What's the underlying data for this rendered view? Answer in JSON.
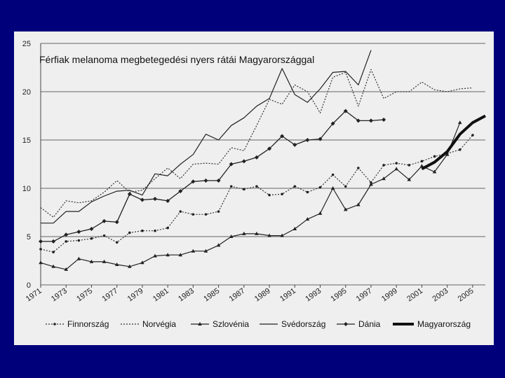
{
  "slide_background": "#00007a",
  "chart_data": {
    "type": "line",
    "title": "Férfiak melanoma megbetegedési nyers rátái Magyarországgal",
    "xlabel": "",
    "ylabel": "",
    "ylim": [
      0,
      25
    ],
    "yticks": [
      0,
      5,
      10,
      15,
      20,
      25
    ],
    "xticks": [
      "1971",
      "1973",
      "1975",
      "1977",
      "1979",
      "1981",
      "1983",
      "1985",
      "1987",
      "1989",
      "1991",
      "1993",
      "1995",
      "1997",
      "1999",
      "2001",
      "2003",
      "2005"
    ],
    "grid": "horizontal",
    "legend_position": "bottom",
    "series": [
      {
        "name": "Finnország",
        "style": "dotted-dots",
        "x": [
          1971,
          1972,
          1973,
          1974,
          1975,
          1976,
          1977,
          1978,
          1979,
          1980,
          1981,
          1982,
          1983,
          1984,
          1985,
          1986,
          1987,
          1988,
          1989,
          1990,
          1991,
          1992,
          1993,
          1994,
          1995,
          1996,
          1997,
          1998,
          1999,
          2000,
          2001,
          2002,
          2003,
          2004,
          2005
        ],
        "y": [
          3.7,
          3.4,
          4.5,
          4.6,
          4.8,
          5.1,
          4.4,
          5.4,
          5.6,
          5.6,
          5.9,
          7.6,
          7.3,
          7.3,
          7.6,
          10.2,
          9.9,
          10.2,
          9.3,
          9.4,
          10.2,
          9.6,
          10.1,
          11.4,
          10.2,
          12.1,
          10.6,
          12.4,
          12.6,
          12.4,
          12.8,
          13.3,
          13.6,
          14.0,
          15.5
        ]
      },
      {
        "name": "Norvégia",
        "style": "dotted",
        "x": [
          1971,
          1972,
          1973,
          1974,
          1975,
          1976,
          1977,
          1978,
          1979,
          1980,
          1981,
          1982,
          1983,
          1984,
          1985,
          1986,
          1987,
          1988,
          1989,
          1990,
          1991,
          1992,
          1993,
          1994,
          1995,
          1996,
          1997,
          1998,
          1999,
          2000,
          2001,
          2002,
          2003,
          2004,
          2005
        ],
        "y": [
          8.0,
          7.0,
          8.7,
          8.5,
          8.7,
          9.6,
          10.8,
          9.6,
          9.8,
          11.0,
          12.1,
          11.0,
          12.5,
          12.6,
          12.5,
          14.2,
          13.9,
          16.5,
          19.2,
          18.7,
          20.7,
          20.0,
          17.8,
          21.5,
          22.0,
          18.5,
          22.3,
          19.3,
          20.0,
          20.0,
          21.0,
          20.2,
          20.0,
          20.3,
          20.4
        ]
      },
      {
        "name": "Szlovénia",
        "style": "solid-triangles",
        "x": [
          1971,
          1972,
          1973,
          1974,
          1975,
          1976,
          1977,
          1978,
          1979,
          1980,
          1981,
          1982,
          1983,
          1984,
          1985,
          1986,
          1987,
          1988,
          1989,
          1990,
          1991,
          1992,
          1993,
          1994,
          1995,
          1996,
          1997,
          1998,
          1999,
          2000,
          2001,
          2002,
          2003,
          2004
        ],
        "y": [
          2.3,
          1.9,
          1.6,
          2.7,
          2.4,
          2.4,
          2.1,
          1.9,
          2.3,
          3.0,
          3.1,
          3.1,
          3.5,
          3.5,
          4.1,
          5.0,
          5.3,
          5.3,
          5.1,
          5.1,
          5.8,
          6.8,
          7.4,
          10.0,
          7.8,
          8.3,
          10.4,
          11.0,
          12.0,
          10.9,
          12.3,
          11.7,
          13.5,
          16.8
        ]
      },
      {
        "name": "Svédország",
        "style": "solid-thin",
        "x": [
          1971,
          1972,
          1973,
          1974,
          1975,
          1976,
          1977,
          1978,
          1979,
          1980,
          1981,
          1982,
          1983,
          1984,
          1985,
          1986,
          1987,
          1988,
          1989,
          1990,
          1991,
          1992,
          1993,
          1994,
          1995,
          1996,
          1997
        ],
        "y": [
          6.4,
          6.4,
          7.6,
          7.6,
          8.6,
          9.2,
          9.7,
          9.8,
          9.3,
          11.5,
          11.3,
          12.5,
          13.5,
          15.6,
          15.0,
          16.5,
          17.3,
          18.5,
          19.3,
          22.4,
          19.7,
          18.9,
          20.3,
          22.0,
          22.1,
          20.7,
          24.3
        ]
      },
      {
        "name": "Dánia",
        "style": "solid-diamonds",
        "x": [
          1971,
          1972,
          1973,
          1974,
          1975,
          1976,
          1977,
          1978,
          1979,
          1980,
          1981,
          1982,
          1983,
          1984,
          1985,
          1986,
          1987,
          1988,
          1989,
          1990,
          1991,
          1992,
          1993,
          1994,
          1995,
          1996,
          1997,
          1998
        ],
        "y": [
          4.5,
          4.5,
          5.2,
          5.5,
          5.8,
          6.6,
          6.5,
          9.4,
          8.8,
          8.9,
          8.7,
          9.7,
          10.7,
          10.8,
          10.8,
          12.5,
          12.8,
          13.2,
          14.1,
          15.4,
          14.5,
          15.0,
          15.1,
          16.7,
          18.0,
          17.0,
          17.0,
          17.1
        ]
      },
      {
        "name": "Magyarország",
        "style": "solid-thick",
        "x": [
          2001,
          2002,
          2003,
          2004,
          2005,
          2006
        ],
        "y": [
          12.0,
          12.7,
          13.8,
          15.6,
          16.8,
          17.5
        ]
      }
    ]
  }
}
